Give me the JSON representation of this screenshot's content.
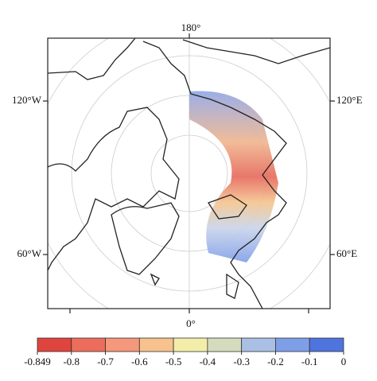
{
  "map": {
    "lon_labels": {
      "top": "180°",
      "upper_left": "120°W",
      "upper_right": "120°E",
      "lower_left": "60°W",
      "lower_right": "60°E",
      "bottom": "0°"
    }
  },
  "colorbar": {
    "ticks": [
      -0.849,
      -0.8,
      -0.7,
      -0.6,
      -0.5,
      -0.4,
      -0.3,
      -0.2,
      -0.1,
      0
    ],
    "colors": [
      "#e0443e",
      "#ec6d5c",
      "#f4977a",
      "#f7c28e",
      "#f2eeaa",
      "#d4dcbe",
      "#aabfe4",
      "#7f9ee8",
      "#4f74dd"
    ]
  }
}
